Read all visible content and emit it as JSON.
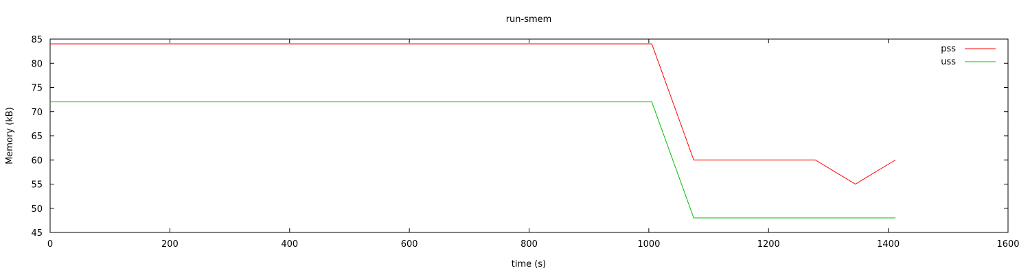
{
  "chart_data": {
    "type": "line",
    "title": "run-smem",
    "xlabel": "time (s)",
    "ylabel": "Memory (kB)",
    "xlim": [
      0,
      1600
    ],
    "ylim": [
      45,
      85
    ],
    "xticks": [
      0,
      200,
      400,
      600,
      800,
      1000,
      1200,
      1400,
      1600
    ],
    "yticks": [
      45,
      50,
      55,
      60,
      65,
      70,
      75,
      80,
      85
    ],
    "grid": false,
    "legend": "top-right",
    "series": [
      {
        "name": "pss",
        "color": "#ff0000",
        "x": [
          0,
          1005,
          1075,
          1278,
          1345,
          1412
        ],
        "y": [
          84,
          84,
          60,
          60,
          55,
          60
        ]
      },
      {
        "name": "uss",
        "color": "#00c000",
        "x": [
          0,
          1005,
          1075,
          1412
        ],
        "y": [
          72,
          72,
          48,
          48
        ]
      }
    ]
  }
}
